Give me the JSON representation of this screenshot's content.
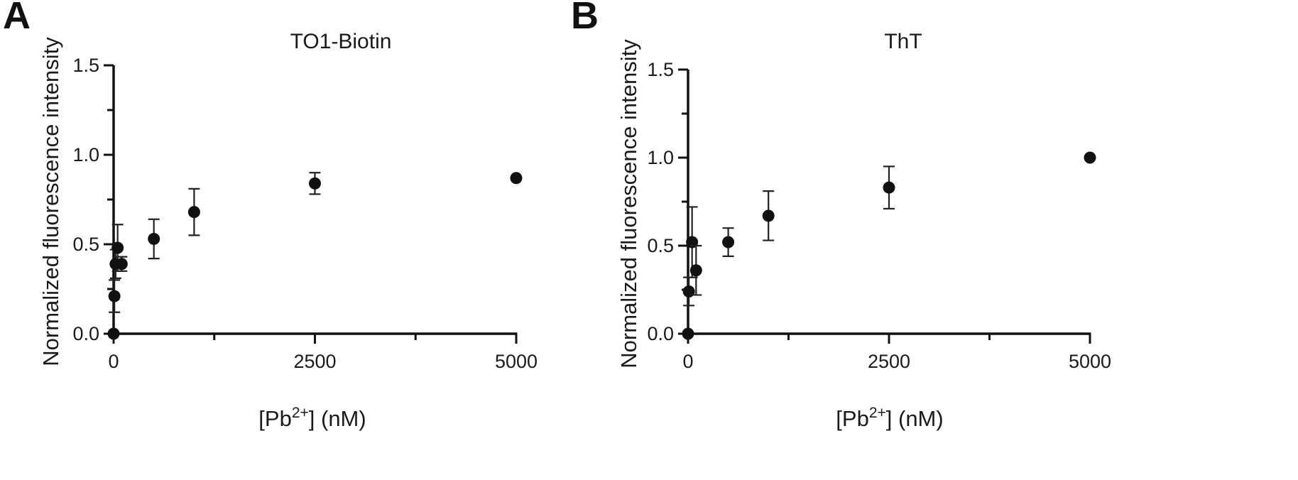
{
  "panels": [
    {
      "letter": "A"
    },
    {
      "letter": "B"
    }
  ],
  "colors": {
    "marker": "#111111",
    "axis": "#111111"
  },
  "chart_data": [
    {
      "type": "scatter",
      "panel": "A",
      "title": "TO1-Biotin",
      "xlabel_main": "[Pb",
      "xlabel_sup": "2+",
      "xlabel_tail": "] (nM)",
      "ylabel": "Normalized fluorescence intensity",
      "xlim": [
        0,
        5000
      ],
      "ylim": [
        0,
        1.5
      ],
      "x_ticks": [
        0,
        1250,
        2500,
        3750,
        5000
      ],
      "x_tick_labels": [
        "0",
        "",
        "2500",
        "",
        "5000"
      ],
      "y_ticks": [
        0,
        0.25,
        0.5,
        0.75,
        1.0,
        1.25,
        1.5
      ],
      "y_tick_labels": [
        "0.0",
        "",
        "0.5",
        "",
        "1.0",
        "",
        "1.5"
      ],
      "grid": false,
      "series": [
        {
          "points": [
            {
              "x": 0,
              "y": 0.0,
              "err": 0.0
            },
            {
              "x": 10,
              "y": 0.21,
              "err": 0.09
            },
            {
              "x": 25,
              "y": 0.39,
              "err": 0.08
            },
            {
              "x": 50,
              "y": 0.48,
              "err": 0.13
            },
            {
              "x": 100,
              "y": 0.39,
              "err": 0.04
            },
            {
              "x": 500,
              "y": 0.53,
              "err": 0.11
            },
            {
              "x": 1000,
              "y": 0.68,
              "err": 0.13
            },
            {
              "x": 2500,
              "y": 0.84,
              "err": 0.06
            },
            {
              "x": 5000,
              "y": 0.87,
              "err": 0.0
            }
          ]
        }
      ]
    },
    {
      "type": "scatter",
      "panel": "B",
      "title": "ThT",
      "xlabel_main": "[Pb",
      "xlabel_sup": "2+",
      "xlabel_tail": "] (nM)",
      "ylabel": "Normalized fluorescence intensity",
      "xlim": [
        0,
        5000
      ],
      "ylim": [
        0,
        1.5
      ],
      "x_ticks": [
        0,
        1250,
        2500,
        3750,
        5000
      ],
      "x_tick_labels": [
        "0",
        "",
        "2500",
        "",
        "5000"
      ],
      "y_ticks": [
        0,
        0.25,
        0.5,
        0.75,
        1.0,
        1.25,
        1.5
      ],
      "y_tick_labels": [
        "0.0",
        "",
        "0.5",
        "",
        "1.0",
        "",
        "1.5"
      ],
      "grid": false,
      "series": [
        {
          "points": [
            {
              "x": 0,
              "y": 0.0,
              "err": 0.0
            },
            {
              "x": 10,
              "y": 0.24,
              "err": 0.08
            },
            {
              "x": 50,
              "y": 0.52,
              "err": 0.2
            },
            {
              "x": 100,
              "y": 0.36,
              "err": 0.14
            },
            {
              "x": 500,
              "y": 0.52,
              "err": 0.08
            },
            {
              "x": 1000,
              "y": 0.67,
              "err": 0.14
            },
            {
              "x": 2500,
              "y": 0.83,
              "err": 0.12
            },
            {
              "x": 5000,
              "y": 1.0,
              "err": 0.0
            }
          ]
        }
      ]
    }
  ]
}
